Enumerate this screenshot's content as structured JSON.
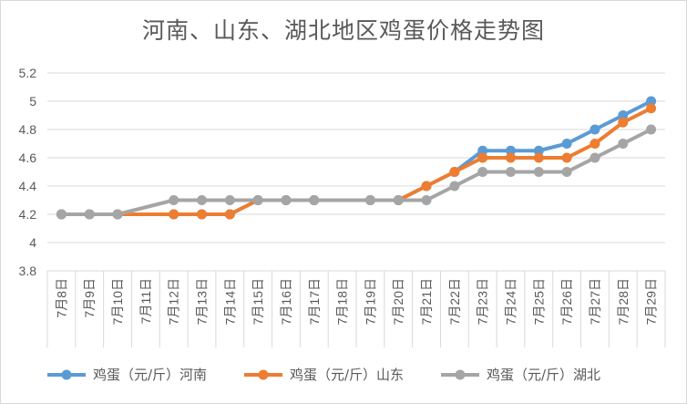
{
  "chart_data": {
    "type": "line",
    "title": "河南、山东、湖北地区鸡蛋价格走势图",
    "xlabel": "",
    "ylabel": "",
    "categories": [
      "7月8日",
      "7月9日",
      "7月10日",
      "7月11日",
      "7月12日",
      "7月13日",
      "7月14日",
      "7月15日",
      "7月16日",
      "7月17日",
      "7月18日",
      "7月19日",
      "7月20日",
      "7月21日",
      "7月22日",
      "7月23日",
      "7月24日",
      "7月25日",
      "7月26日",
      "7月27日",
      "7月28日",
      "7月29日"
    ],
    "ylim": [
      3.8,
      5.2
    ],
    "yticks": [
      "3.8",
      "4",
      "4.2",
      "4.4",
      "4.6",
      "4.8",
      "5",
      "5.2"
    ],
    "grid": true,
    "legend_position": "bottom",
    "series": [
      {
        "name": "鸡蛋（元/斤）河南",
        "color": "#5b9bd5",
        "values": [
          4.2,
          4.2,
          4.2,
          null,
          4.2,
          4.2,
          4.2,
          4.3,
          4.3,
          4.3,
          null,
          4.3,
          4.3,
          4.4,
          4.5,
          4.65,
          4.65,
          4.65,
          4.7,
          4.8,
          4.9,
          5.0
        ]
      },
      {
        "name": "鸡蛋（元/斤）山东",
        "color": "#ed7d31",
        "values": [
          4.2,
          4.2,
          4.2,
          null,
          4.2,
          4.2,
          4.2,
          4.3,
          4.3,
          4.3,
          null,
          4.3,
          4.3,
          4.4,
          4.5,
          4.6,
          4.6,
          4.6,
          4.6,
          4.7,
          4.85,
          4.95
        ]
      },
      {
        "name": "鸡蛋（元/斤）湖北",
        "color": "#a5a5a5",
        "values": [
          4.2,
          4.2,
          4.2,
          null,
          4.3,
          4.3,
          4.3,
          4.3,
          4.3,
          4.3,
          null,
          4.3,
          4.3,
          4.3,
          4.4,
          4.5,
          4.5,
          4.5,
          4.5,
          4.6,
          4.7,
          4.8
        ]
      }
    ]
  }
}
